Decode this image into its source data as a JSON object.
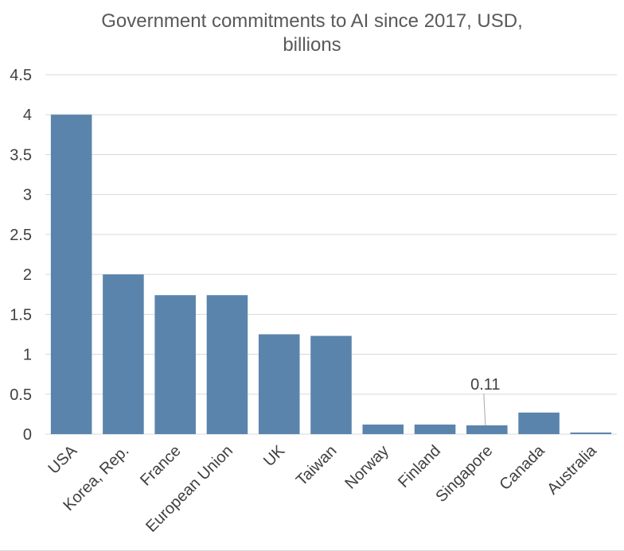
{
  "chart_data": {
    "type": "bar",
    "title_line1": "Government commitments to AI since 2017, USD,",
    "title_line2": "billions",
    "xlabel": "",
    "ylabel": "",
    "ylim": [
      0,
      4.5
    ],
    "yticks": [
      "0",
      "0.5",
      "1",
      "1.5",
      "2",
      "2.5",
      "3",
      "3.5",
      "4",
      "4.5"
    ],
    "grid": true,
    "categories": [
      "USA",
      "Korea, Rep.",
      "France",
      "European Union",
      "UK",
      "Taiwan",
      "Norway",
      "Finland",
      "Singapore",
      "Canada",
      "Australia"
    ],
    "values": [
      4.0,
      2.0,
      1.74,
      1.74,
      1.25,
      1.23,
      0.12,
      0.12,
      0.11,
      0.27,
      0.02
    ],
    "bar_color": "#5b84ac",
    "annotations": [
      {
        "category": "Singapore",
        "text": "0.11"
      }
    ]
  }
}
